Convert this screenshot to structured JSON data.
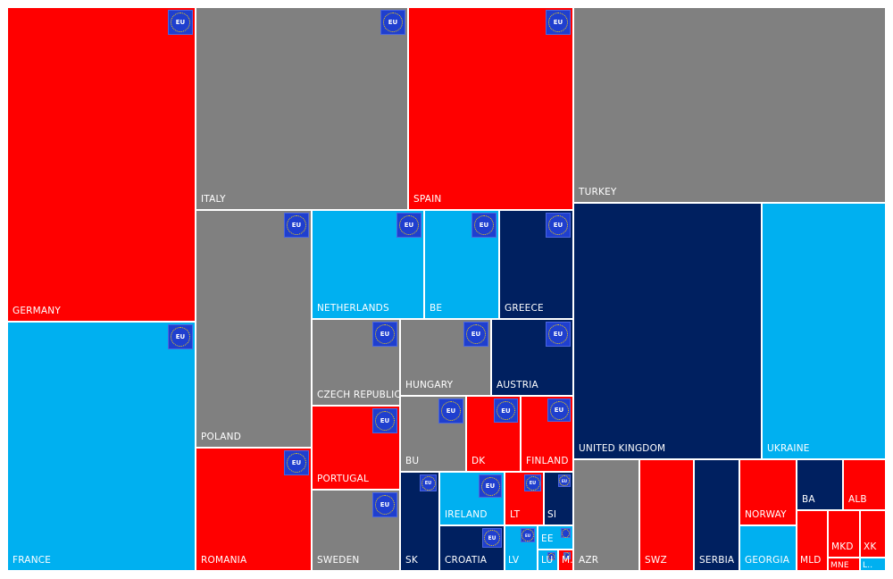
{
  "chart_data": {
    "type": "treemap",
    "palette": {
      "red": "#ff0000",
      "gray": "#808080",
      "light_blue": "#00b0f0",
      "navy": "#002060",
      "eu_badge": "#1f3fcf"
    },
    "badge_text": "EU",
    "items": [
      {
        "label": "GERMANY",
        "color": "#ff0000",
        "eu": true
      },
      {
        "label": "FRANCE",
        "color": "#00b0f0",
        "eu": true
      },
      {
        "label": "ITALY",
        "color": "#808080",
        "eu": true
      },
      {
        "label": "SPAIN",
        "color": "#ff0000",
        "eu": true
      },
      {
        "label": "POLAND",
        "color": "#808080",
        "eu": true
      },
      {
        "label": "ROMANIA",
        "color": "#ff0000",
        "eu": true
      },
      {
        "label": "NETHERLANDS",
        "color": "#00b0f0",
        "eu": true
      },
      {
        "label": "BE",
        "color": "#00b0f0",
        "eu": true
      },
      {
        "label": "GREECE",
        "color": "#002060",
        "eu": true
      },
      {
        "label": "CZECH REPUBLIC",
        "color": "#808080",
        "eu": true
      },
      {
        "label": "PORTUGAL",
        "color": "#ff0000",
        "eu": true
      },
      {
        "label": "SWEDEN",
        "color": "#808080",
        "eu": true
      },
      {
        "label": "HUNGARY",
        "color": "#808080",
        "eu": true
      },
      {
        "label": "AUSTRIA",
        "color": "#002060",
        "eu": true
      },
      {
        "label": "BU",
        "color": "#808080",
        "eu": true
      },
      {
        "label": "DK",
        "color": "#ff0000",
        "eu": true
      },
      {
        "label": "FINLAND",
        "color": "#ff0000",
        "eu": true
      },
      {
        "label": "SK",
        "color": "#002060",
        "eu": true
      },
      {
        "label": "IRELAND",
        "color": "#00b0f0",
        "eu": true
      },
      {
        "label": "CROATIA",
        "color": "#002060",
        "eu": true
      },
      {
        "label": "LT",
        "color": "#ff0000",
        "eu": true
      },
      {
        "label": "SI",
        "color": "#002060",
        "eu": true
      },
      {
        "label": "LV",
        "color": "#00b0f0",
        "eu": true
      },
      {
        "label": "EE",
        "color": "#00b0f0",
        "eu": true
      },
      {
        "label": "LU",
        "color": "#00b0f0",
        "eu": true
      },
      {
        "label": "M..",
        "color": "#ff0000",
        "eu": true
      },
      {
        "label": "TURKEY",
        "color": "#808080",
        "eu": false
      },
      {
        "label": "UNITED KINGDOM",
        "color": "#002060",
        "eu": false
      },
      {
        "label": "UKRAINE",
        "color": "#00b0f0",
        "eu": false
      },
      {
        "label": "AZR",
        "color": "#808080",
        "eu": false
      },
      {
        "label": "SWZ",
        "color": "#ff0000",
        "eu": false
      },
      {
        "label": "SERBIA",
        "color": "#002060",
        "eu": false
      },
      {
        "label": "NORWAY",
        "color": "#ff0000",
        "eu": false
      },
      {
        "label": "GEORGIA",
        "color": "#00b0f0",
        "eu": false
      },
      {
        "label": "BA",
        "color": "#002060",
        "eu": false
      },
      {
        "label": "ALB",
        "color": "#ff0000",
        "eu": false
      },
      {
        "label": "MLD",
        "color": "#ff0000",
        "eu": false
      },
      {
        "label": "MKD",
        "color": "#ff0000",
        "eu": false
      },
      {
        "label": "XK",
        "color": "#ff0000",
        "eu": false
      },
      {
        "label": "MNE",
        "color": "#ff0000",
        "eu": false
      },
      {
        "label": "L..",
        "color": "#00b0f0",
        "eu": false
      }
    ]
  }
}
